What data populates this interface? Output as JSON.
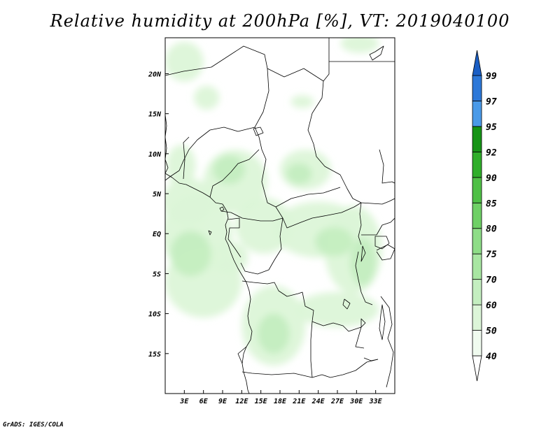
{
  "title": "Relative humidity at 200hPa [%], VT: 2019040100",
  "credit": "GrADS: IGES/COLA",
  "chart_data": {
    "type": "heatmap",
    "variable": "Relative humidity",
    "level": "200hPa",
    "units": "%",
    "valid_time": "2019040100",
    "lon_range": [
      0,
      36
    ],
    "lat_range": [
      -20,
      24.5
    ],
    "x_ticks": [
      "3E",
      "6E",
      "9E",
      "12E",
      "15E",
      "18E",
      "21E",
      "24E",
      "27E",
      "30E",
      "33E"
    ],
    "x_tick_values": [
      3,
      6,
      9,
      12,
      15,
      18,
      21,
      24,
      27,
      30,
      33
    ],
    "y_ticks": [
      "20N",
      "15N",
      "10N",
      "5N",
      "EQ",
      "5S",
      "10S",
      "15S"
    ],
    "y_tick_values": [
      20,
      15,
      10,
      5,
      0,
      -5,
      -10,
      -15
    ],
    "colorbar": {
      "levels": [
        "40",
        "50",
        "60",
        "70",
        "75",
        "80",
        "85",
        "90",
        "92",
        "95",
        "97",
        "99"
      ],
      "colors": [
        "#f0fbef",
        "#dcf5d8",
        "#c4eec0",
        "#a8e6a2",
        "#8edd87",
        "#6fd066",
        "#4fc046",
        "#2fae2a",
        "#169416",
        "#4a9ae8",
        "#2d78d8",
        "#1a5ec4"
      ]
    },
    "fields": [
      {
        "lon": 2.5,
        "lat": 8.5,
        "rlon": 2.3,
        "rlat": 2.6,
        "level": 1
      },
      {
        "lon": 3.5,
        "lat": 4,
        "rlon": 4,
        "rlat": 3,
        "level": 1
      },
      {
        "lon": 5,
        "lat": 0,
        "rlon": 5.5,
        "rlat": 5,
        "level": 1
      },
      {
        "lon": 6,
        "lat": -6,
        "rlon": 6,
        "rlat": 4.5,
        "level": 1
      },
      {
        "lon": 11,
        "lat": 6.5,
        "rlon": 5,
        "rlat": 4,
        "level": 1
      },
      {
        "lon": 15.5,
        "lat": 1,
        "rlon": 4.5,
        "rlat": 3.5,
        "level": 1
      },
      {
        "lon": 17,
        "lat": -11.5,
        "rlon": 5,
        "rlat": 5,
        "level": 1
      },
      {
        "lon": 22,
        "lat": 8,
        "rlon": 4,
        "rlat": 2.5,
        "level": 1
      },
      {
        "lon": 24,
        "lat": 0.5,
        "rlon": 7,
        "rlat": 3.5,
        "level": 1
      },
      {
        "lon": 29.5,
        "lat": -2,
        "rlon": 4.5,
        "rlat": 5.5,
        "level": 1
      },
      {
        "lon": 27,
        "lat": -9.5,
        "rlon": 6.5,
        "rlat": 2.2,
        "level": 1
      },
      {
        "lon": 10,
        "lat": -3,
        "rlon": 3,
        "rlat": 2,
        "level": 1
      },
      {
        "lon": 3,
        "lat": 21.5,
        "rlon": 3,
        "rlat": 2.5,
        "level": 1
      },
      {
        "lon": 30.5,
        "lat": 23.8,
        "rlon": 3,
        "rlat": 1.2,
        "level": 1
      },
      {
        "lon": 6.5,
        "lat": 17,
        "rlon": 2,
        "rlat": 1.5,
        "level": 1
      },
      {
        "lon": 21.5,
        "lat": 16.5,
        "rlon": 1.8,
        "rlat": 0.8,
        "level": 1
      },
      {
        "lon": 4,
        "lat": -2.5,
        "rlon": 3.2,
        "rlat": 2.8,
        "level": 2
      },
      {
        "lon": 10,
        "lat": 8,
        "rlon": 2.5,
        "rlat": 1.8,
        "level": 2
      },
      {
        "lon": 17,
        "lat": -12.5,
        "rlon": 2.5,
        "rlat": 2.5,
        "level": 2
      },
      {
        "lon": 26.5,
        "lat": -1,
        "rlon": 3,
        "rlat": 1.8,
        "level": 2
      },
      {
        "lon": 31,
        "lat": -3.5,
        "rlon": 2,
        "rlat": 3,
        "level": 2
      },
      {
        "lon": 21,
        "lat": 7.5,
        "rlon": 2,
        "rlat": 1.3,
        "level": 2
      }
    ]
  }
}
